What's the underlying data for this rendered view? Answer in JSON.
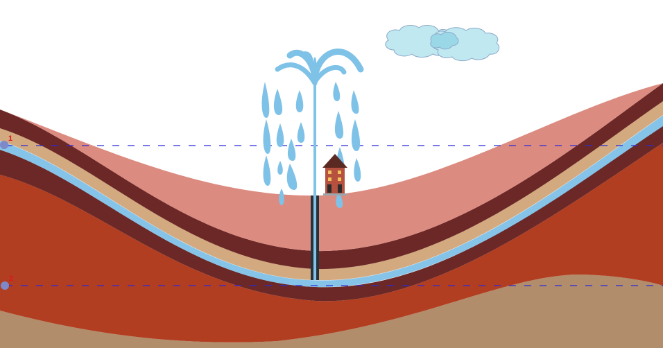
{
  "markers": [
    {
      "label": "1"
    },
    {
      "label": "2"
    }
  ],
  "colors": {
    "sky": "#ffffff",
    "top_layer": "#dc8b80",
    "dark_band": "#6b2826",
    "tan_band": "#d3a97f",
    "aquifer": "#86c3e8",
    "bedrock": "#b23e22",
    "base_layer": "#b18d6b",
    "dash_line": "#2b2bd8",
    "marker_point": "#7f88c8",
    "marker_label": "#e0151d",
    "water": "#7fc2e8",
    "cloud": "#bfe8f0",
    "cloud_outline": "#8ca9c9",
    "house": "#b5513e"
  },
  "icons": {
    "fountain": "water-fountain-icon",
    "cloud": "cloud-icon",
    "house": "house-icon",
    "well": "well-pipe-icon"
  }
}
